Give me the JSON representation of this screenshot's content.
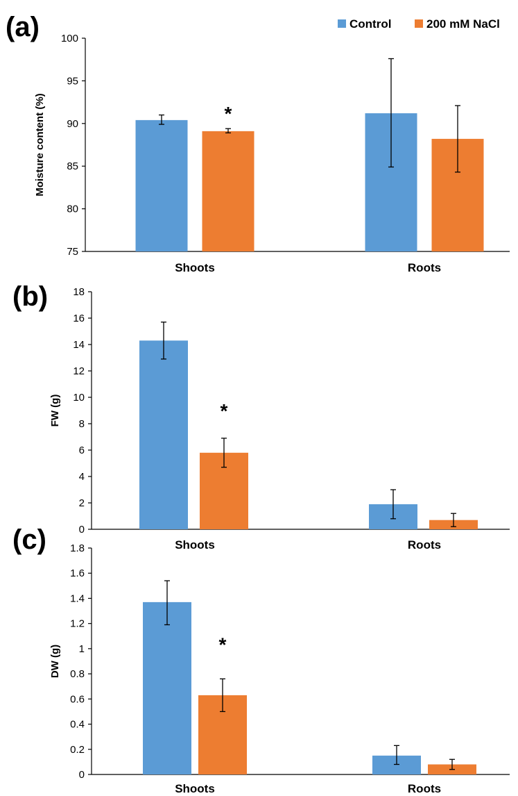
{
  "legend": {
    "entries": [
      {
        "name": "Control",
        "color": "#5B9BD5"
      },
      {
        "name": "200 mM NaCl",
        "color": "#ED7D31"
      }
    ]
  },
  "chart_data": [
    {
      "type": "bar",
      "panel_label": "(a)",
      "categories": [
        "Shoots",
        "Roots"
      ],
      "ylabel": "Moisture content (%)",
      "ylim": [
        75,
        100
      ],
      "yticks": [
        75,
        80,
        85,
        90,
        95,
        100
      ],
      "ytick_labels": [
        "75",
        "80",
        "85",
        "90",
        "95",
        "100"
      ],
      "series": [
        {
          "name": "Control",
          "values": [
            90.4,
            91.2
          ],
          "err_low": [
            89.9,
            84.9
          ],
          "err_high": [
            91.0,
            97.6
          ]
        },
        {
          "name": "200 mM NaCl",
          "values": [
            89.1,
            88.2
          ],
          "err_low": [
            88.9,
            84.3
          ],
          "err_high": [
            89.4,
            92.1
          ]
        }
      ],
      "annotations": [
        {
          "text": "*",
          "category": 0,
          "series": 1
        }
      ],
      "grid": false
    },
    {
      "type": "bar",
      "panel_label": "(b)",
      "categories": [
        "Shoots",
        "Roots"
      ],
      "ylabel": "FW (g)",
      "ylim": [
        0,
        18
      ],
      "yticks": [
        0,
        2,
        4,
        6,
        8,
        10,
        12,
        14,
        16,
        18
      ],
      "ytick_labels": [
        "0",
        "2",
        "4",
        "6",
        "8",
        "10",
        "12",
        "14",
        "16",
        "18"
      ],
      "series": [
        {
          "name": "Control",
          "values": [
            14.3,
            1.9
          ],
          "err_low": [
            12.9,
            0.8
          ],
          "err_high": [
            15.7,
            3.0
          ]
        },
        {
          "name": "200 mM NaCl",
          "values": [
            5.8,
            0.7
          ],
          "err_low": [
            4.7,
            0.2
          ],
          "err_high": [
            6.9,
            1.2
          ]
        }
      ],
      "annotations": [
        {
          "text": "*",
          "category": 0,
          "series": 1
        }
      ],
      "grid": false
    },
    {
      "type": "bar",
      "panel_label": "(c)",
      "categories": [
        "Shoots",
        "Roots"
      ],
      "ylabel": "DW (g)",
      "ylim": [
        0,
        1.8
      ],
      "yticks": [
        0,
        0.2,
        0.4,
        0.6,
        0.8,
        1,
        1.2,
        1.4,
        1.6,
        1.8
      ],
      "ytick_labels": [
        "0",
        "0.2",
        "0.4",
        "0.6",
        "0.8",
        "1",
        "1.2",
        "1.4",
        "1.6",
        "1.8"
      ],
      "series": [
        {
          "name": "Control",
          "values": [
            1.37,
            0.15
          ],
          "err_low": [
            1.19,
            0.08
          ],
          "err_high": [
            1.54,
            0.23
          ]
        },
        {
          "name": "200 mM NaCl",
          "values": [
            0.63,
            0.08
          ],
          "err_low": [
            0.5,
            0.04
          ],
          "err_high": [
            0.76,
            0.12
          ]
        }
      ],
      "annotations": [
        {
          "text": "*",
          "category": 0,
          "series": 1
        }
      ],
      "grid": false
    }
  ]
}
